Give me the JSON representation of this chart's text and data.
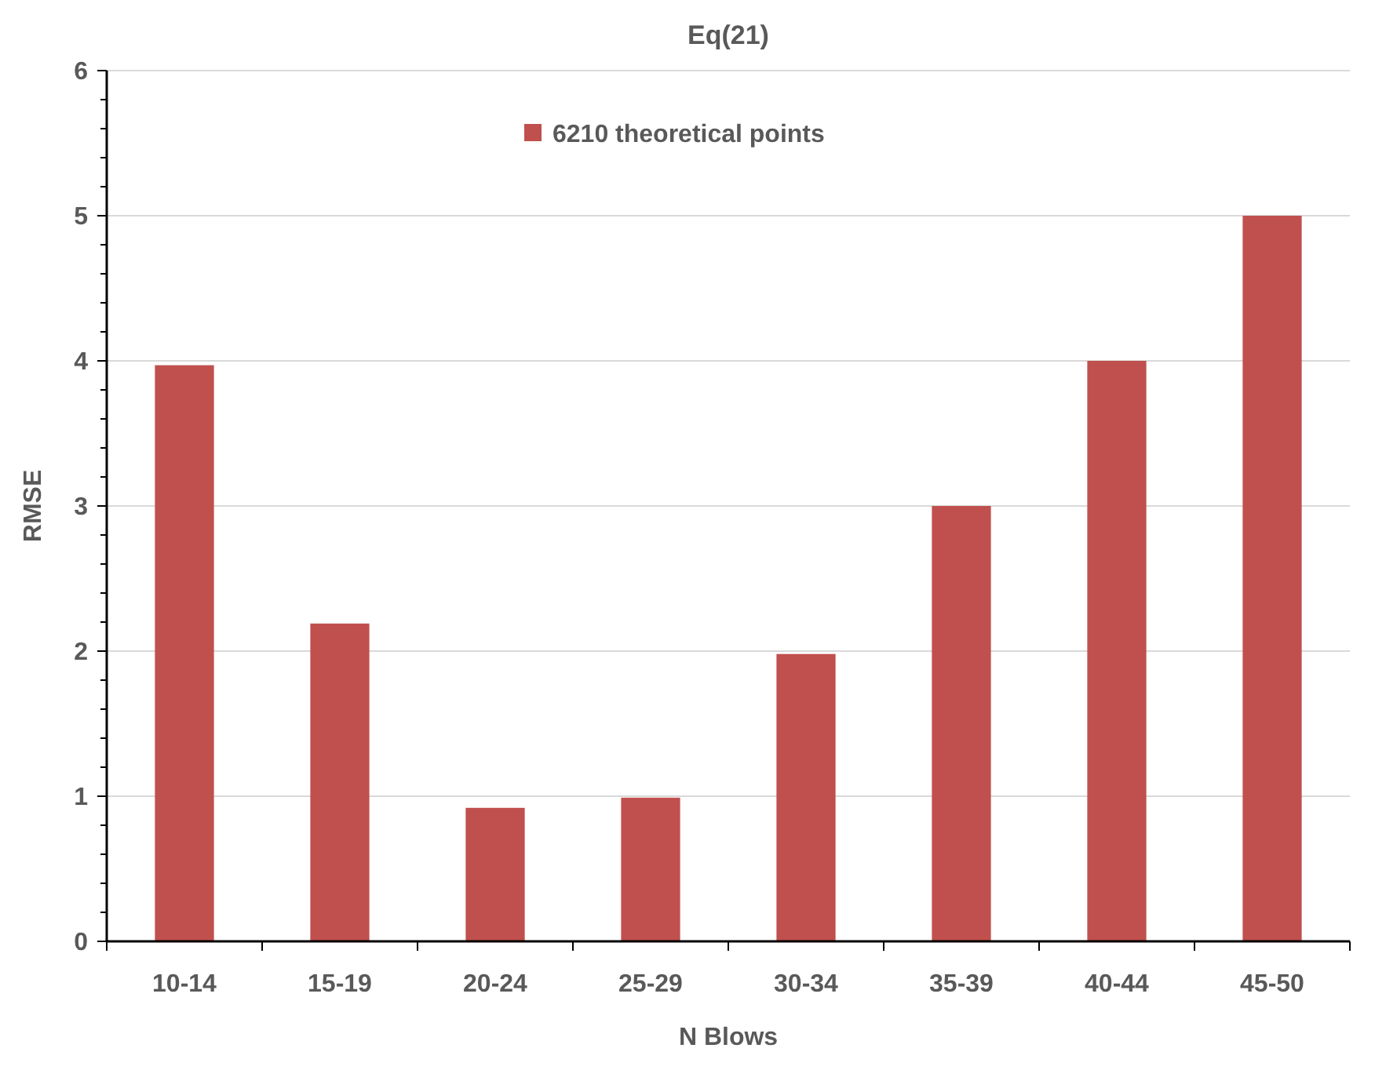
{
  "chart_data": {
    "type": "bar",
    "title": "Eq(21)",
    "xlabel": "N Blows",
    "ylabel": "RMSE",
    "categories": [
      "10-14",
      "15-19",
      "20-24",
      "25-29",
      "30-34",
      "35-39",
      "40-44",
      "45-50"
    ],
    "series": [
      {
        "name": "6210 theoretical points",
        "color": "#c0504d",
        "values": [
          3.97,
          2.19,
          0.92,
          0.99,
          1.98,
          3.0,
          4.0,
          5.0
        ]
      }
    ],
    "ylim": [
      0,
      6
    ],
    "yticks": [
      0,
      {
        "value": 0.2,
        "label": null
      },
      {
        "value": 0.4,
        "label": null
      },
      {
        "value": 0.6,
        "label": null
      },
      {
        "value": 0.8,
        "label": null
      },
      1,
      {
        "value": 1.2,
        "label": null
      },
      {
        "value": 1.4,
        "label": null
      },
      {
        "value": 1.6,
        "label": null
      },
      {
        "value": 1.8,
        "label": null
      },
      2,
      {
        "value": 2.2,
        "label": null
      },
      {
        "value": 2.4,
        "label": null
      },
      {
        "value": 2.6,
        "label": null
      },
      {
        "value": 2.8,
        "label": null
      },
      3,
      {
        "value": 3.2,
        "label": null
      },
      {
        "value": 3.4,
        "label": null
      },
      {
        "value": 3.6,
        "label": null
      },
      {
        "value": 3.8,
        "label": null
      },
      4,
      {
        "value": 4.2,
        "label": null
      },
      {
        "value": 4.4,
        "label": null
      },
      {
        "value": 4.6,
        "label": null
      },
      {
        "value": 4.8,
        "label": null
      },
      5,
      {
        "value": 5.2,
        "label": null
      },
      {
        "value": 5.4,
        "label": null
      },
      {
        "value": 5.6,
        "label": null
      },
      {
        "value": 5.8,
        "label": null
      },
      6
    ],
    "grid": "y",
    "legend": "top"
  }
}
